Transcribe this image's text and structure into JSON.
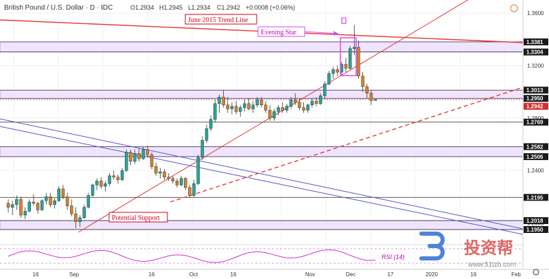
{
  "header": {
    "symbol": "British Pound / U.S. Dollar · D · IDC",
    "open": "O1.2934",
    "high": "H1.2945",
    "low": "L1.2934",
    "close": "C1.2942",
    "change": "+0.0008 (+0.06%)"
  },
  "annotations": {
    "trend_line": "June 2015 Trend Line",
    "evening_star": "Evening Star",
    "potential_support": "Potential Support"
  },
  "rsi": {
    "label": "RSI (14)",
    "levels": [
      "60.00",
      "40.00"
    ]
  },
  "watermark": {
    "text": "投资帮",
    "url": "www.51tzb.com"
  },
  "colors": {
    "bull": "#26a69a",
    "bear": "#d9822b",
    "zone_fill": "#eadcff",
    "zone_border": "#c070ff",
    "red_line": "#e53935",
    "blue_line": "#5555cc",
    "price_tag": "#d32f2f",
    "rsi_line": "#cc33cc"
  },
  "chart_data": {
    "type": "candlestick",
    "title": "British Pound / U.S. Dollar · D · IDC",
    "x_ticks": [
      "16",
      "Sep",
      "16",
      "Oct",
      "16",
      "Nov",
      "Dec",
      "17",
      "2020",
      "16",
      "Feb"
    ],
    "y_ticks": [
      1.36,
      1.32,
      1.28,
      1.24,
      1.2
    ],
    "ylim": [
      1.184,
      1.369
    ],
    "levels": [
      1.3381,
      1.3304,
      1.3013,
      1.295,
      1.2769,
      1.2582,
      1.2506,
      1.2195,
      1.2018,
      1.195
    ],
    "current_price": 1.2942,
    "zones": [
      [
        1.3304,
        1.3381
      ],
      [
        1.295,
        1.3013
      ],
      [
        1.2506,
        1.2582
      ],
      [
        1.195,
        1.2018
      ]
    ],
    "candles": [
      [
        1.215,
        1.218,
        1.208,
        1.212
      ],
      [
        1.212,
        1.217,
        1.206,
        1.214
      ],
      [
        1.214,
        1.221,
        1.21,
        1.218
      ],
      [
        1.218,
        1.22,
        1.204,
        1.206
      ],
      [
        1.206,
        1.212,
        1.203,
        1.209
      ],
      [
        1.209,
        1.218,
        1.208,
        1.216
      ],
      [
        1.216,
        1.222,
        1.213,
        1.215
      ],
      [
        1.215,
        1.216,
        1.207,
        1.21
      ],
      [
        1.21,
        1.218,
        1.209,
        1.217
      ],
      [
        1.217,
        1.223,
        1.214,
        1.22
      ],
      [
        1.22,
        1.223,
        1.212,
        1.214
      ],
      [
        1.214,
        1.219,
        1.211,
        1.217
      ],
      [
        1.217,
        1.228,
        1.216,
        1.226
      ],
      [
        1.226,
        1.229,
        1.218,
        1.22
      ],
      [
        1.22,
        1.223,
        1.21,
        1.213
      ],
      [
        1.213,
        1.218,
        1.205,
        1.207
      ],
      [
        1.207,
        1.212,
        1.196,
        1.201
      ],
      [
        1.201,
        1.206,
        1.197,
        1.204
      ],
      [
        1.204,
        1.214,
        1.203,
        1.212
      ],
      [
        1.212,
        1.223,
        1.211,
        1.221
      ],
      [
        1.221,
        1.23,
        1.22,
        1.229
      ],
      [
        1.229,
        1.234,
        1.225,
        1.232
      ],
      [
        1.232,
        1.235,
        1.226,
        1.228
      ],
      [
        1.228,
        1.232,
        1.224,
        1.23
      ],
      [
        1.23,
        1.238,
        1.228,
        1.236
      ],
      [
        1.236,
        1.24,
        1.233,
        1.235
      ],
      [
        1.235,
        1.237,
        1.23,
        1.233
      ],
      [
        1.233,
        1.242,
        1.232,
        1.24
      ],
      [
        1.24,
        1.256,
        1.239,
        1.254
      ],
      [
        1.254,
        1.256,
        1.244,
        1.247
      ],
      [
        1.247,
        1.256,
        1.245,
        1.253
      ],
      [
        1.253,
        1.257,
        1.247,
        1.249
      ],
      [
        1.249,
        1.258,
        1.248,
        1.256
      ],
      [
        1.256,
        1.259,
        1.25,
        1.252
      ],
      [
        1.252,
        1.254,
        1.241,
        1.243
      ],
      [
        1.243,
        1.246,
        1.236,
        1.238
      ],
      [
        1.238,
        1.242,
        1.234,
        1.239
      ],
      [
        1.239,
        1.241,
        1.233,
        1.235
      ],
      [
        1.235,
        1.238,
        1.232,
        1.234
      ],
      [
        1.234,
        1.236,
        1.23,
        1.232
      ],
      [
        1.232,
        1.234,
        1.227,
        1.229
      ],
      [
        1.229,
        1.236,
        1.228,
        1.234
      ],
      [
        1.234,
        1.235,
        1.225,
        1.227
      ],
      [
        1.227,
        1.229,
        1.219,
        1.221
      ],
      [
        1.221,
        1.233,
        1.2195,
        1.23
      ],
      [
        1.23,
        1.252,
        1.229,
        1.25
      ],
      [
        1.25,
        1.266,
        1.248,
        1.263
      ],
      [
        1.263,
        1.275,
        1.261,
        1.272
      ],
      [
        1.272,
        1.282,
        1.27,
        1.279
      ],
      [
        1.279,
        1.294,
        1.277,
        1.291
      ],
      [
        1.291,
        1.298,
        1.284,
        1.296
      ],
      [
        1.296,
        1.301,
        1.288,
        1.29
      ],
      [
        1.29,
        1.296,
        1.284,
        1.287
      ],
      [
        1.287,
        1.292,
        1.283,
        1.289
      ],
      [
        1.289,
        1.293,
        1.283,
        1.285
      ],
      [
        1.285,
        1.29,
        1.281,
        1.288
      ],
      [
        1.288,
        1.294,
        1.285,
        1.291
      ],
      [
        1.291,
        1.295,
        1.286,
        1.287
      ],
      [
        1.287,
        1.293,
        1.284,
        1.29
      ],
      [
        1.29,
        1.296,
        1.288,
        1.294
      ],
      [
        1.294,
        1.296,
        1.288,
        1.29
      ],
      [
        1.29,
        1.293,
        1.284,
        1.286
      ],
      [
        1.286,
        1.29,
        1.278,
        1.28
      ],
      [
        1.28,
        1.287,
        1.278,
        1.285
      ],
      [
        1.285,
        1.29,
        1.282,
        1.288
      ],
      [
        1.288,
        1.292,
        1.284,
        1.286
      ],
      [
        1.286,
        1.291,
        1.284,
        1.289
      ],
      [
        1.289,
        1.296,
        1.287,
        1.294
      ],
      [
        1.294,
        1.299,
        1.29,
        1.292
      ],
      [
        1.292,
        1.295,
        1.286,
        1.288
      ],
      [
        1.288,
        1.292,
        1.284,
        1.286
      ],
      [
        1.286,
        1.291,
        1.284,
        1.29
      ],
      [
        1.29,
        1.295,
        1.288,
        1.293
      ],
      [
        1.293,
        1.296,
        1.289,
        1.291
      ],
      [
        1.291,
        1.299,
        1.29,
        1.297
      ],
      [
        1.297,
        1.308,
        1.295,
        1.306
      ],
      [
        1.306,
        1.316,
        1.305,
        1.314
      ],
      [
        1.314,
        1.319,
        1.31,
        1.317
      ],
      [
        1.317,
        1.32,
        1.312,
        1.315
      ],
      [
        1.315,
        1.323,
        1.313,
        1.321
      ],
      [
        1.321,
        1.326,
        1.315,
        1.318
      ],
      [
        1.318,
        1.335,
        1.317,
        1.333
      ],
      [
        1.333,
        1.351,
        1.328,
        1.334
      ],
      [
        1.334,
        1.339,
        1.31,
        1.312
      ],
      [
        1.312,
        1.315,
        1.3,
        1.304
      ],
      [
        1.304,
        1.306,
        1.295,
        1.299
      ],
      [
        1.299,
        1.301,
        1.29,
        1.2934
      ],
      [
        1.2934,
        1.2945,
        1.2934,
        1.2942
      ]
    ]
  }
}
